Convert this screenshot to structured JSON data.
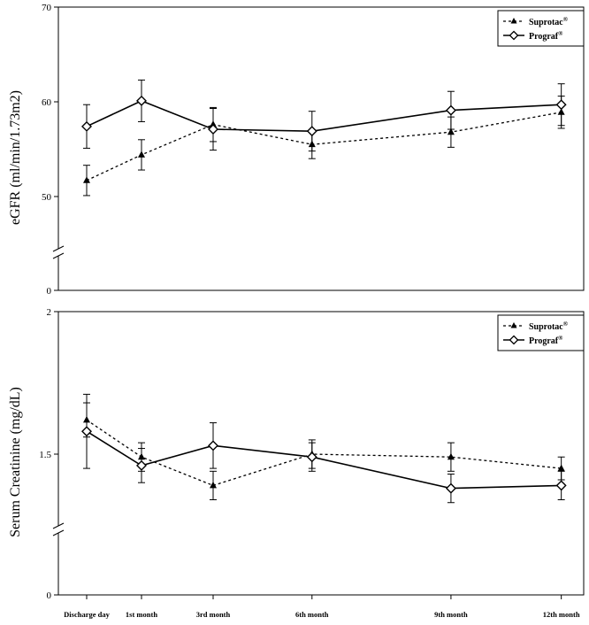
{
  "chart_data": [
    {
      "type": "line",
      "ylabel": "eGFR (ml/min/1.73m2)",
      "ylim": [
        0,
        70
      ],
      "axis_break": true,
      "yticks": [
        {
          "value": 0,
          "label": "0"
        },
        {
          "value": 50,
          "label": "50"
        },
        {
          "value": 60,
          "label": "60"
        },
        {
          "value": 70,
          "label": "70"
        }
      ],
      "legend_position": "top-right",
      "series": [
        {
          "name": "Suprotac",
          "name_sup": "®",
          "style": "dashed",
          "marker": "triangle",
          "values": [
            51.7,
            54.4,
            57.6,
            55.5,
            56.8,
            58.9
          ],
          "error": [
            1.6,
            1.6,
            1.8,
            1.5,
            1.6,
            1.7
          ]
        },
        {
          "name": "Prograf",
          "name_sup": "®",
          "style": "solid",
          "marker": "diamond",
          "values": [
            57.4,
            60.1,
            57.1,
            56.9,
            59.1,
            59.7
          ],
          "error": [
            2.3,
            2.2,
            2.2,
            2.1,
            2.0,
            2.2
          ]
        }
      ]
    },
    {
      "type": "line",
      "ylabel": "Serum Creatinine (mg/dL)",
      "ylim": [
        0,
        2
      ],
      "axis_break": true,
      "xlabel": "",
      "categories": [
        "Discharge day",
        "1st month",
        "3rd month",
        "6th month",
        "9th month",
        "12th month"
      ],
      "x": [
        0,
        1,
        2,
        3.38,
        5.32,
        6.86
      ],
      "yticks": [
        {
          "value": 0,
          "label": "0"
        },
        {
          "value": 1.5,
          "label": "1.5"
        },
        {
          "value": 2,
          "label": "2"
        }
      ],
      "legend_position": "top-right",
      "series": [
        {
          "name": "Suprotac",
          "name_sup": "®",
          "style": "dashed",
          "marker": "triangle",
          "values": [
            1.62,
            1.49,
            1.39,
            1.5,
            1.49,
            1.45
          ],
          "error": [
            0.06,
            0.05,
            0.05,
            0.05,
            0.05,
            0.04
          ]
        },
        {
          "name": "Prograf",
          "name_sup": "®",
          "style": "solid",
          "marker": "diamond",
          "values": [
            1.58,
            1.46,
            1.53,
            1.49,
            1.38,
            1.39
          ],
          "error": [
            0.13,
            0.06,
            0.08,
            0.05,
            0.05,
            0.05
          ]
        }
      ]
    }
  ]
}
